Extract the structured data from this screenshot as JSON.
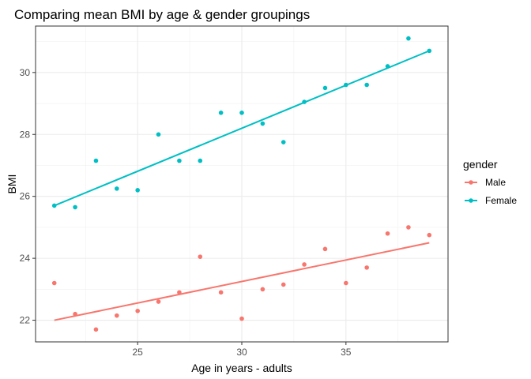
{
  "chart_data": {
    "type": "scatter",
    "title": "Comparing mean BMI by age & gender groupings",
    "xlabel": "Age in years - adults",
    "ylabel": "BMI",
    "xlim": [
      20.1,
      39.9
    ],
    "ylim": [
      21.3,
      31.5
    ],
    "x_ticks": [
      25,
      30,
      35
    ],
    "y_ticks": [
      22,
      24,
      26,
      28,
      30
    ],
    "grid": true,
    "legend": {
      "title": "gender",
      "placement": "right"
    },
    "series": [
      {
        "name": "Male",
        "color": "#F8766D",
        "x": [
          21,
          22,
          23,
          24,
          25,
          26,
          27,
          28,
          29,
          30,
          31,
          32,
          33,
          34,
          35,
          36,
          37,
          38,
          39
        ],
        "y": [
          23.2,
          22.2,
          21.7,
          22.15,
          22.3,
          22.6,
          22.9,
          24.05,
          22.9,
          22.05,
          23.0,
          23.15,
          23.8,
          24.3,
          23.2,
          23.7,
          24.8,
          25.0,
          24.75
        ],
        "fit": {
          "x": [
            21,
            39
          ],
          "y": [
            22.0,
            24.5
          ]
        }
      },
      {
        "name": "Female",
        "color": "#00BFC4",
        "x": [
          21,
          22,
          23,
          24,
          25,
          26,
          27,
          28,
          29,
          30,
          31,
          32,
          33,
          34,
          35,
          36,
          37,
          38,
          39
        ],
        "y": [
          25.7,
          25.65,
          27.15,
          26.25,
          26.2,
          28.0,
          27.15,
          27.15,
          28.7,
          28.7,
          28.35,
          27.75,
          29.05,
          29.5,
          29.6,
          29.6,
          30.2,
          31.1,
          30.7
        ],
        "fit": {
          "x": [
            21,
            39
          ],
          "y": [
            25.7,
            30.7
          ]
        }
      }
    ]
  }
}
